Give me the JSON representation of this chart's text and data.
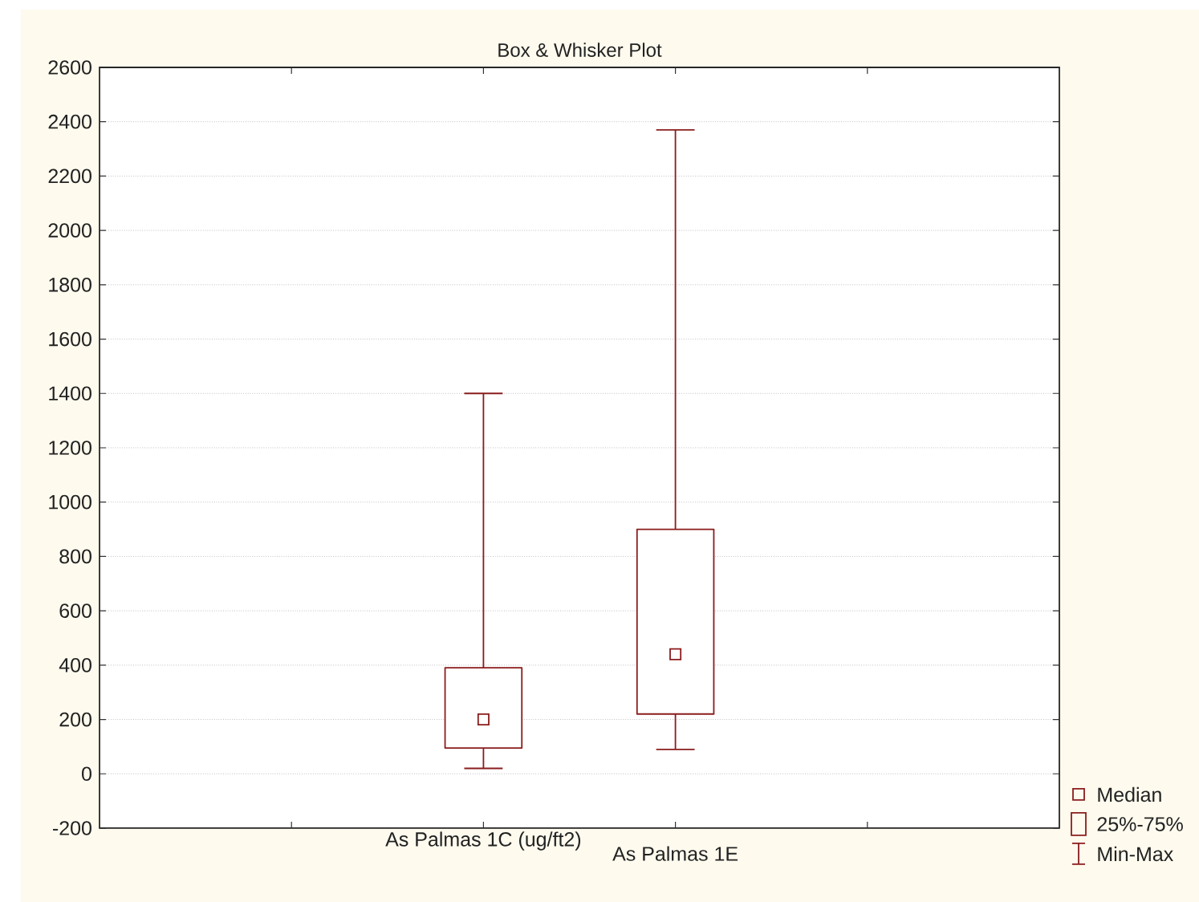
{
  "chart_data": {
    "type": "box",
    "title": "Box & Whisker Plot",
    "categories": [
      null,
      "As Palmas 1C (ug/ft2)",
      "As Palmas 1E",
      null
    ],
    "boxes": [
      null,
      {
        "low": 20,
        "q1": 95,
        "median": 200,
        "q3": 390,
        "high": 1400
      },
      {
        "low": 90,
        "q1": 220,
        "median": 440,
        "q3": 900,
        "high": 2370
      },
      null
    ],
    "color": "#8b1c1c",
    "marker": "square",
    "ylim": [
      -200,
      2600
    ],
    "yticks": [
      -200,
      0,
      200,
      400,
      600,
      800,
      1000,
      1200,
      1400,
      1600,
      1800,
      2000,
      2200,
      2400,
      2600
    ],
    "grid": "y",
    "annotations": [
      "Median",
      "25%-75%",
      "Min-Max"
    ]
  }
}
